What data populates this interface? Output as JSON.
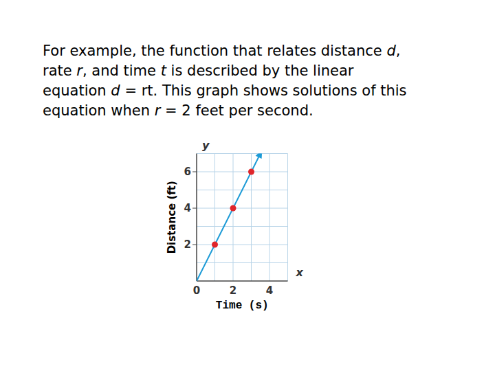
{
  "text": {
    "lines": [
      "For example, the function that relates distance d,",
      "rate r, and time t is described by the linear",
      "equation d = rt. This graph shows solutions of this",
      "equation when r = 2 feet per second."
    ]
  },
  "chart_data": {
    "type": "line",
    "x_label": "Time (s)",
    "y_label": "Distance (ft)",
    "x_axis_symbol": "x",
    "y_axis_symbol": "y",
    "xlim": [
      0,
      5
    ],
    "ylim": [
      0,
      7
    ],
    "xticks": [
      0,
      2,
      4
    ],
    "yticks": [
      2,
      4,
      6
    ],
    "grid": true,
    "series": [
      {
        "type": "line",
        "color": "#1b9ad6",
        "marker": "arrow",
        "x": [
          0,
          3.5
        ],
        "values": [
          0,
          7
        ]
      },
      {
        "type": "scatter",
        "color": "#e0262b",
        "marker": "circle",
        "x": [
          1,
          2,
          3
        ],
        "values": [
          2,
          4,
          6
        ]
      }
    ]
  }
}
